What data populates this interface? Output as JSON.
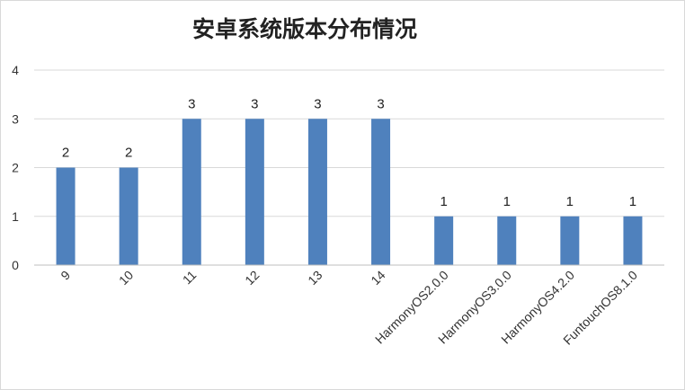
{
  "chart_data": {
    "type": "bar",
    "title": "安卓系统版本分布情况",
    "categories": [
      "9",
      "10",
      "11",
      "12",
      "13",
      "14",
      "HarmonyOS2.0.0",
      "HarmonyOS3.0.0",
      "HarmonyOS4.2.0",
      "FuntouchOS8.1.0"
    ],
    "values": [
      2,
      2,
      3,
      3,
      3,
      3,
      1,
      1,
      1,
      1
    ],
    "data_labels": [
      "2",
      "2",
      "3",
      "3",
      "3",
      "3",
      "1",
      "1",
      "1",
      "1"
    ],
    "ylim": [
      0,
      4
    ],
    "yticks": [
      "0",
      "1",
      "2",
      "3",
      "4"
    ],
    "xlabel": "",
    "ylabel": "",
    "grid": true,
    "legend": "none",
    "bar_color": "#4f81bd"
  }
}
